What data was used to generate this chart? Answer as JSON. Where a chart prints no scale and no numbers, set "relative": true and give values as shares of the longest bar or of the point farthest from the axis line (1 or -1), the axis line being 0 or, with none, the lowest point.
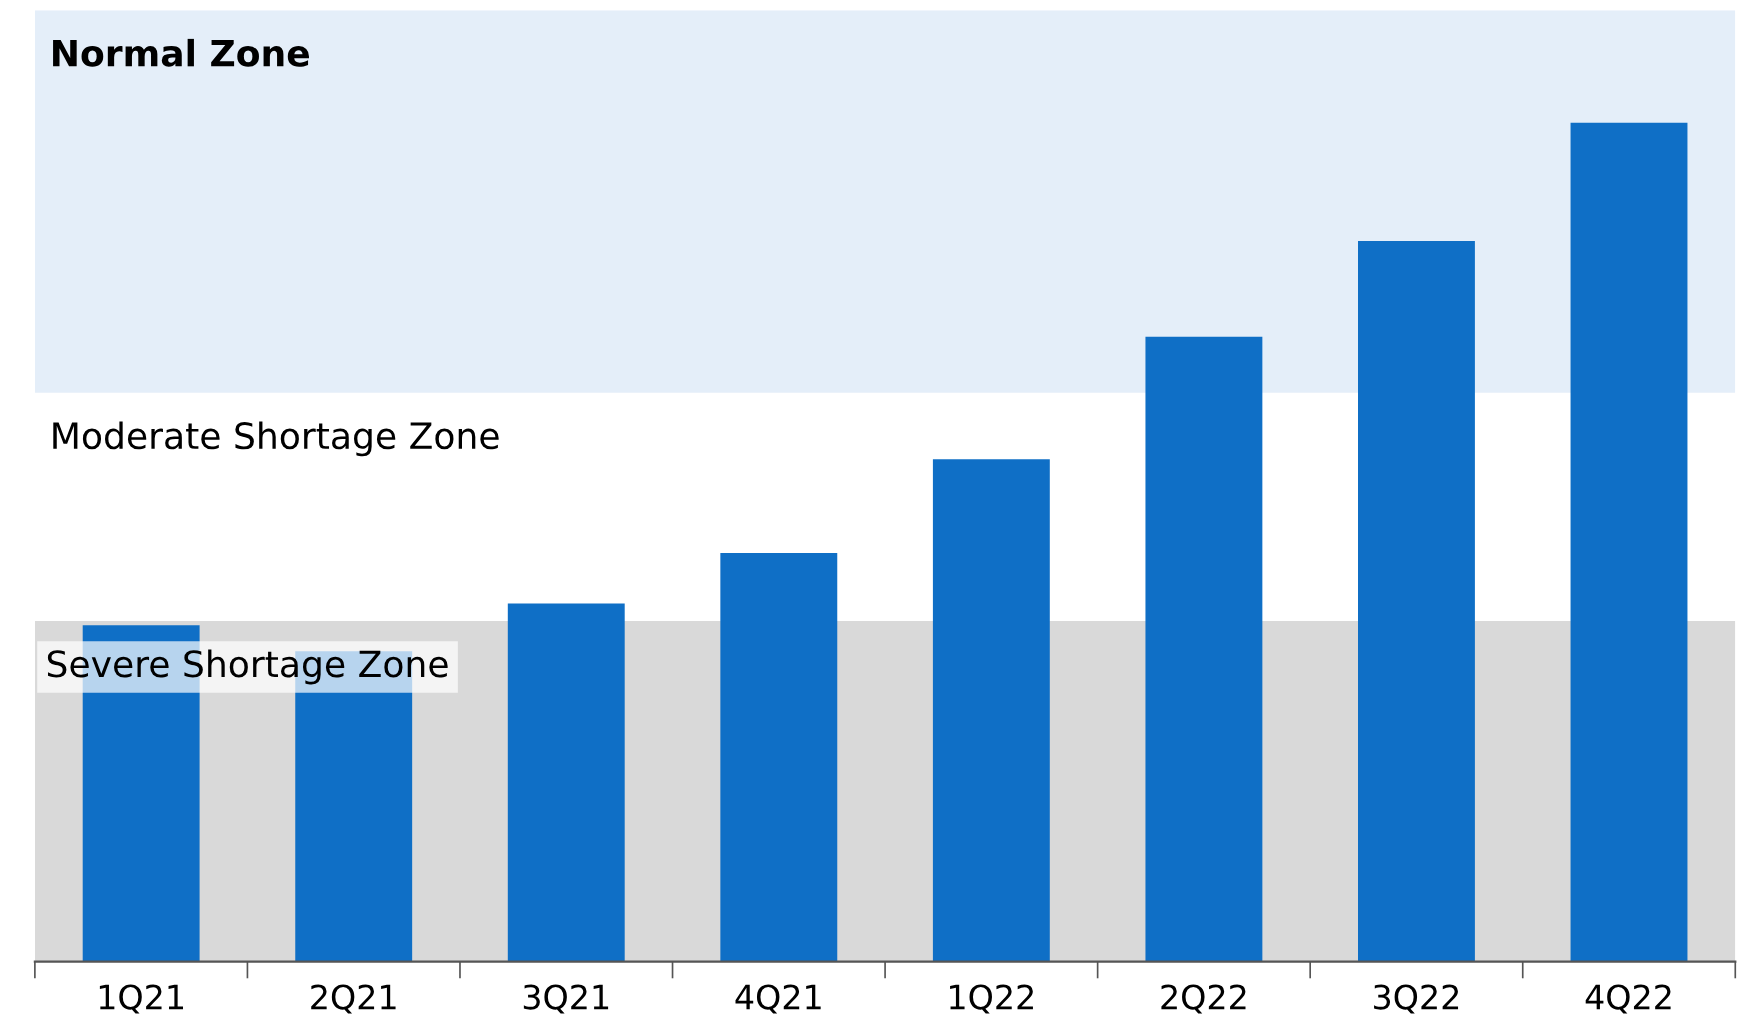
{
  "chart_data": {
    "type": "bar",
    "relative": true,
    "categories": [
      "1Q21",
      "2Q21",
      "3Q21",
      "4Q21",
      "1Q22",
      "2Q22",
      "3Q22",
      "4Q22"
    ],
    "values": [
      0.401,
      0.37,
      0.427,
      0.487,
      0.599,
      0.745,
      0.859,
      1.0
    ],
    "color": "#0f6fc6",
    "annotations": [
      "Moderate Shortage Zone"
    ],
    "grid": false,
    "legend": false,
    "bands": [
      {
        "axis": "y",
        "from": 0,
        "to": 0.406,
        "label": "Severe Shortage Zone",
        "color": "#d9d9d9"
      },
      {
        "axis": "y",
        "from": 0.678,
        "to": 1.134,
        "label": "Normal Zone",
        "color": "#e4eef9"
      }
    ]
  }
}
